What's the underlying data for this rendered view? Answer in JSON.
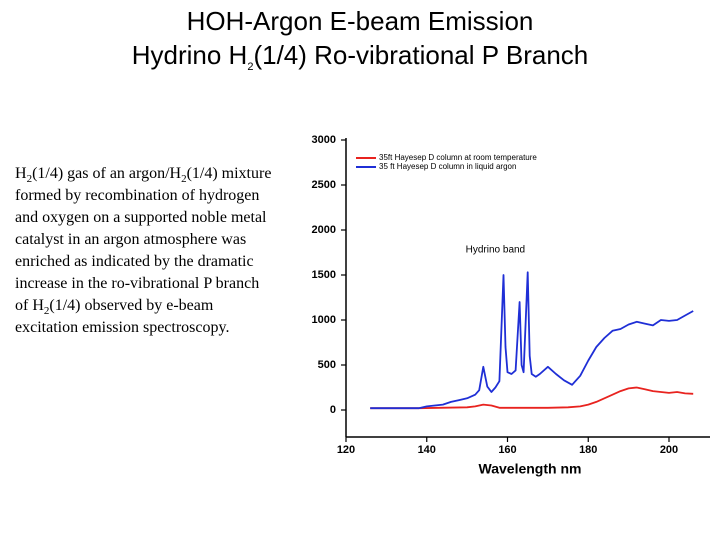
{
  "slide": {
    "title_line1": "HOH-Argon E-beam Emission",
    "title_line2": [
      "Hydrino H",
      "2",
      "(1/4) Ro-vibrational P Branch"
    ],
    "body": [
      "H",
      "2",
      "(1/4) gas of an argon/H",
      "2",
      "(1/4) mixture formed by recombination of hydrogen and oxygen on a supported noble metal catalyst in an argon atmosphere was enriched as indicated by the dramatic increase in the ro-vibrational P branch of H",
      "2",
      "(1/4) observed by e-beam excitation emission spectroscopy."
    ]
  },
  "chart_data": {
    "type": "line",
    "xlabel": "Wavelength nm",
    "xlim": [
      120,
      210
    ],
    "xticks": [
      120,
      140,
      160,
      180,
      200
    ],
    "ylim": [
      -300,
      3000
    ],
    "yticks": [
      0,
      500,
      1000,
      1500,
      2000,
      2500,
      3000
    ],
    "legend": "upper left",
    "annotations": [
      {
        "text": "Hydrino band",
        "x": 157,
        "y": 1780
      }
    ],
    "series": [
      {
        "name": "35ft Hayesep D column at room temperature",
        "color": "#e8231f",
        "x": [
          126,
          138,
          150,
          152,
          154,
          156,
          158,
          170,
          175,
          178,
          180,
          182,
          184,
          186,
          188,
          190,
          192,
          194,
          196,
          198,
          200,
          202,
          204,
          206
        ],
        "values": [
          20,
          20,
          30,
          40,
          60,
          50,
          25,
          25,
          30,
          40,
          60,
          90,
          130,
          170,
          210,
          240,
          250,
          230,
          210,
          200,
          190,
          200,
          185,
          180
        ]
      },
      {
        "name": "35 ft Hayesep D column in liquid argon",
        "color": "#1f2fd6",
        "x": [
          126,
          138,
          140,
          142,
          144,
          146,
          148,
          150,
          152,
          153,
          154,
          155,
          156,
          157,
          158,
          159,
          159.5,
          160,
          161,
          162,
          163,
          163.5,
          164,
          165,
          165.5,
          166,
          167,
          168,
          170,
          172,
          174,
          176,
          178,
          180,
          182,
          184,
          186,
          188,
          190,
          192,
          194,
          196,
          198,
          200,
          202,
          204,
          206
        ],
        "values": [
          20,
          20,
          40,
          50,
          60,
          90,
          110,
          130,
          170,
          220,
          480,
          260,
          200,
          250,
          320,
          1500,
          700,
          420,
          400,
          440,
          1200,
          500,
          420,
          1530,
          600,
          400,
          370,
          400,
          480,
          400,
          330,
          280,
          380,
          550,
          700,
          800,
          880,
          900,
          950,
          980,
          960,
          940,
          1000,
          990,
          1000,
          1050,
          1100
        ]
      }
    ]
  }
}
